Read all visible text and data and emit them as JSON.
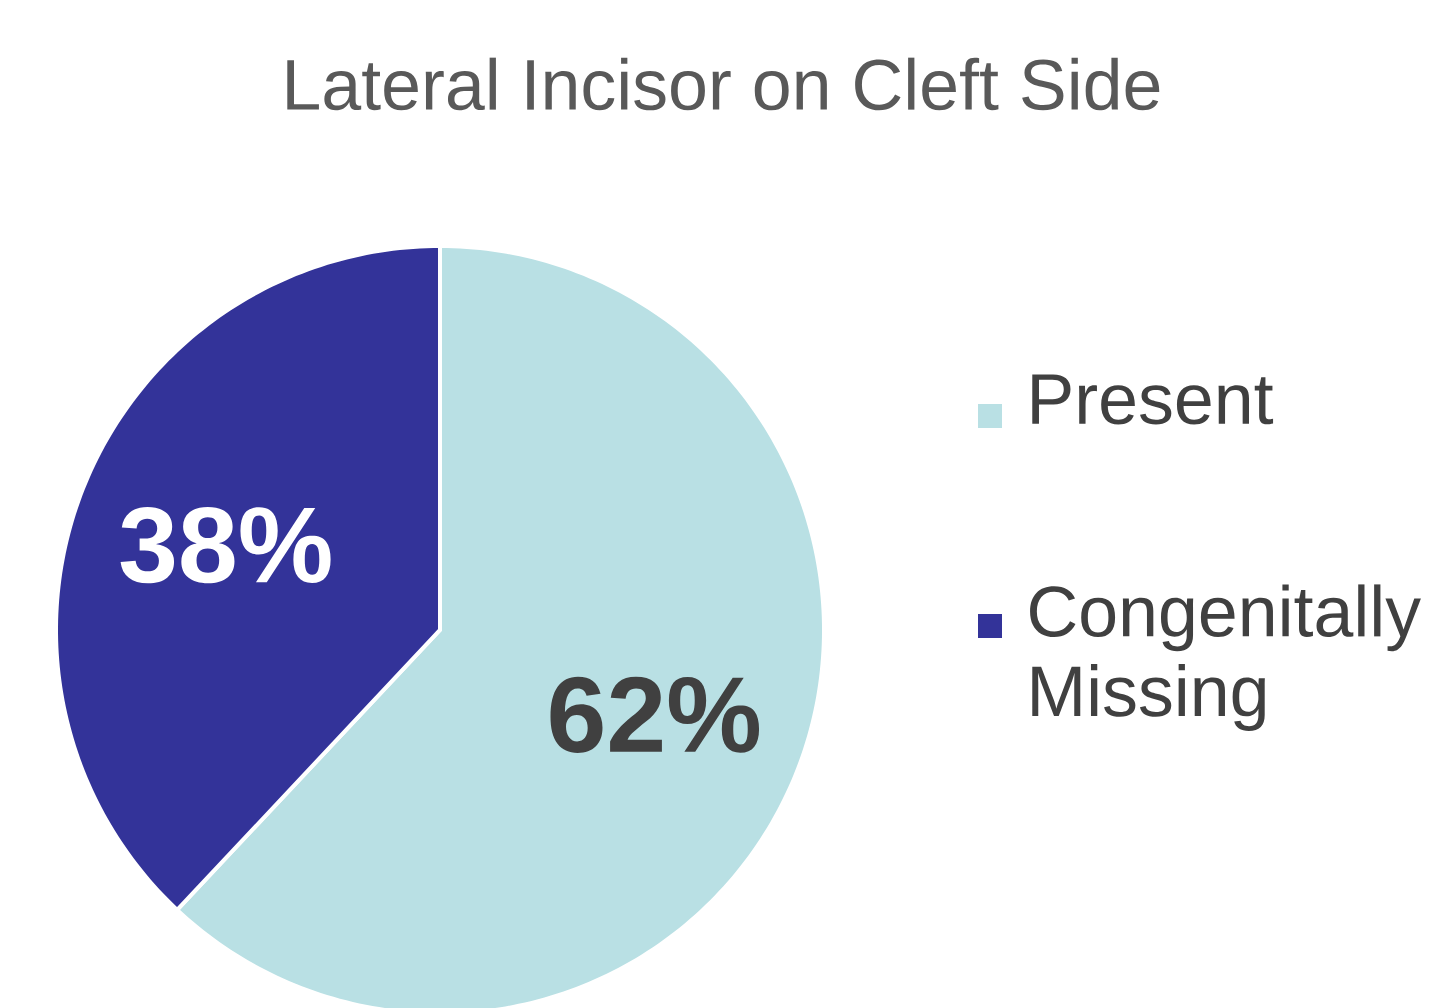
{
  "chart_data": {
    "type": "pie",
    "title": "Lateral Incisor on Cleft Side",
    "categories": [
      "Present",
      "Congenitally Missing"
    ],
    "values": [
      62,
      38
    ],
    "value_labels": [
      "62%",
      "38%"
    ],
    "colors": [
      "#b9e0e4",
      "#333399"
    ],
    "legend": "right"
  }
}
